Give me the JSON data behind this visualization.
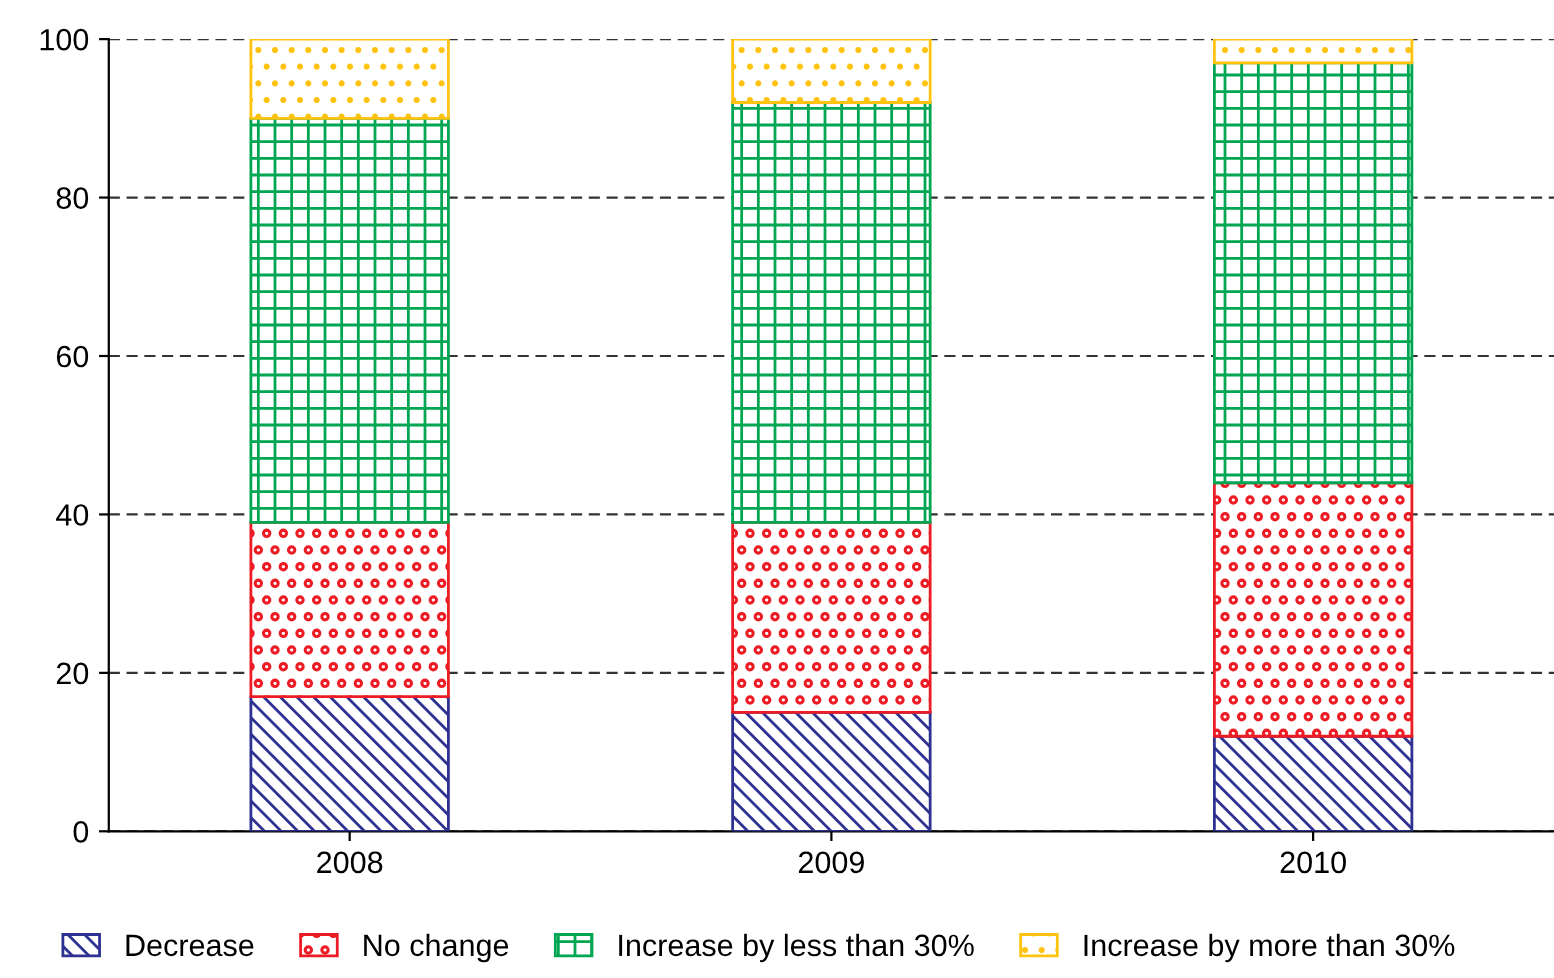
{
  "chart_data": {
    "type": "bar",
    "stacked": true,
    "categories": [
      "2008",
      "2009",
      "2010"
    ],
    "series": [
      {
        "name": "Decrease",
        "color": "#2e3192",
        "values": [
          17,
          15,
          12
        ]
      },
      {
        "name": "No change",
        "color": "#ed1c24",
        "values": [
          22,
          24,
          32
        ]
      },
      {
        "name": "Increase by less than 30%",
        "color": "#00a651",
        "values": [
          51,
          53,
          53
        ]
      },
      {
        "name": "Increase by more than 30%",
        "color": "#ffc20e",
        "values": [
          10,
          8,
          3
        ]
      }
    ],
    "ylim": [
      0,
      100
    ],
    "yticks": [
      0,
      20,
      40,
      60,
      80,
      100
    ],
    "grid": "y",
    "legend": "bottom"
  }
}
